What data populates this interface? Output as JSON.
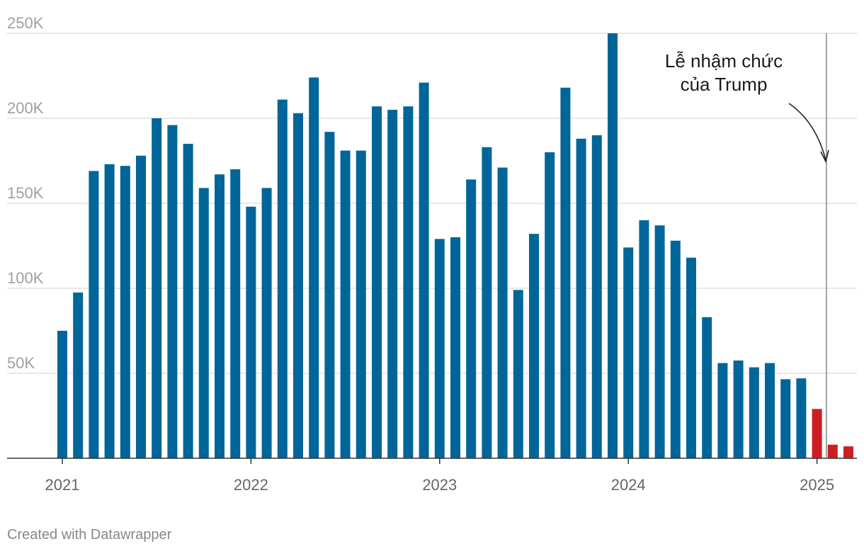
{
  "chart_data": {
    "type": "bar",
    "title": "",
    "xlabel": "",
    "ylabel": "",
    "ylim": [
      0,
      250000
    ],
    "y_ticks": [
      {
        "value": 50000,
        "label": "50K"
      },
      {
        "value": 100000,
        "label": "100K"
      },
      {
        "value": 150000,
        "label": "150K"
      },
      {
        "value": 200000,
        "label": "200K"
      },
      {
        "value": 250000,
        "label": "250K"
      }
    ],
    "x_ticks": [
      {
        "index": 0,
        "label": "2021"
      },
      {
        "index": 12,
        "label": "2022"
      },
      {
        "index": 24,
        "label": "2023"
      },
      {
        "index": 36,
        "label": "2024"
      },
      {
        "index": 48,
        "label": "2025"
      }
    ],
    "categories": [
      "2021-01",
      "2021-02",
      "2021-03",
      "2021-04",
      "2021-05",
      "2021-06",
      "2021-07",
      "2021-08",
      "2021-09",
      "2021-10",
      "2021-11",
      "2021-12",
      "2022-01",
      "2022-02",
      "2022-03",
      "2022-04",
      "2022-05",
      "2022-06",
      "2022-07",
      "2022-08",
      "2022-09",
      "2022-10",
      "2022-11",
      "2022-12",
      "2023-01",
      "2023-02",
      "2023-03",
      "2023-04",
      "2023-05",
      "2023-06",
      "2023-07",
      "2023-08",
      "2023-09",
      "2023-10",
      "2023-11",
      "2023-12",
      "2024-01",
      "2024-02",
      "2024-03",
      "2024-04",
      "2024-05",
      "2024-06",
      "2024-07",
      "2024-08",
      "2024-09",
      "2024-10",
      "2024-11",
      "2024-12",
      "2025-01",
      "2025-02",
      "2025-03"
    ],
    "values": [
      75000,
      97500,
      169000,
      173000,
      172000,
      178000,
      200000,
      196000,
      185000,
      159000,
      167000,
      170000,
      148000,
      159000,
      211000,
      203000,
      224000,
      192000,
      181000,
      181000,
      207000,
      205000,
      207000,
      221000,
      129000,
      130000,
      164000,
      183000,
      171000,
      99000,
      132000,
      180000,
      218000,
      188000,
      190000,
      250000,
      124000,
      140000,
      137000,
      128000,
      118000,
      83000,
      56000,
      57500,
      53500,
      56000,
      46500,
      47000,
      29000,
      8000,
      7000
    ],
    "colors": {
      "default": "#006699",
      "highlight": "#cc1f24",
      "highlight_from_index": 48
    },
    "annotation": {
      "line1": "Lễ nhậm chức",
      "line2": "của Trump",
      "marker_position": 48.6
    }
  },
  "footer": {
    "credit": "Created with Datawrapper"
  }
}
